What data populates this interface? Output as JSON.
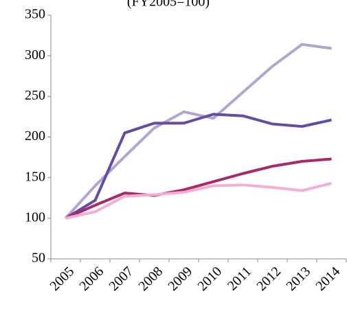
{
  "chart_data": {
    "type": "line",
    "title": "(FY2005=100)",
    "categories": [
      "2005",
      "2006",
      "2007",
      "2008",
      "2009",
      "2010",
      "2011",
      "2012",
      "2013",
      "2014"
    ],
    "series": [
      {
        "color": "#b4a5d0",
        "values": [
          100,
          140,
          176,
          211,
          231,
          223,
          255,
          287,
          314,
          309
        ]
      },
      {
        "color": "#644ba3",
        "values": [
          100,
          122,
          205,
          217,
          217,
          228,
          226,
          216,
          213,
          221
        ]
      },
      {
        "color": "#a82a6c",
        "values": [
          100,
          116,
          131,
          128,
          135,
          145,
          155,
          164,
          170,
          173
        ]
      },
      {
        "color": "#f7acd2",
        "values": [
          100,
          108,
          127,
          129,
          132,
          140,
          141,
          138,
          134,
          143
        ]
      }
    ],
    "ylim": [
      50,
      350
    ],
    "yticks": [
      50,
      100,
      150,
      200,
      250,
      300,
      350
    ],
    "grid": false
  }
}
